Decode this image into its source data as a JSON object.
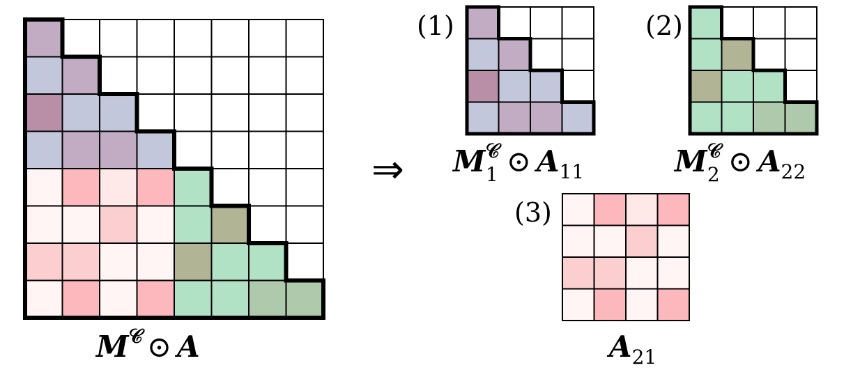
{
  "colors": {
    "0": "#ffffff",
    "b": "#c3c7dc",
    "p": "#c1acc3",
    "P": "#b98fa7",
    "r1": "#fff5f5",
    "r2": "#fee8e8",
    "r3": "#fbcfd0",
    "r4": "#fcb8bc",
    "g": "#b2e2c6",
    "G": "#aec9ab",
    "O": "#b1b495"
  },
  "main": {
    "caption_base": "M",
    "caption_sup": "𝒞",
    "caption_op": "⊙",
    "caption_rhs": "A",
    "grid": [
      [
        "p",
        "0",
        "0",
        "0",
        "0",
        "0",
        "0",
        "0"
      ],
      [
        "b",
        "p",
        "0",
        "0",
        "0",
        "0",
        "0",
        "0"
      ],
      [
        "P",
        "b",
        "b",
        "0",
        "0",
        "0",
        "0",
        "0"
      ],
      [
        "b",
        "p",
        "p",
        "b",
        "0",
        "0",
        "0",
        "0"
      ],
      [
        "r1",
        "r4",
        "r2",
        "r4",
        "g",
        "0",
        "0",
        "0"
      ],
      [
        "r1",
        "r1",
        "r3",
        "r1",
        "g",
        "O",
        "0",
        "0"
      ],
      [
        "r3",
        "r3",
        "r1",
        "r1",
        "O",
        "g",
        "g",
        "0"
      ],
      [
        "r1",
        "r4",
        "r1",
        "r4",
        "g",
        "g",
        "G",
        "G"
      ]
    ]
  },
  "arrow": "⇒",
  "sub1": {
    "label": "(1)",
    "caption_base": "M",
    "caption_sup": "𝒞",
    "caption_sub": "1",
    "caption_op": "⊙",
    "caption_rhs": "A",
    "caption_rhs_sub": "11",
    "grid": [
      [
        "p",
        "0",
        "0",
        "0"
      ],
      [
        "b",
        "p",
        "0",
        "0"
      ],
      [
        "P",
        "b",
        "b",
        "0"
      ],
      [
        "b",
        "p",
        "p",
        "b"
      ]
    ]
  },
  "sub2": {
    "label": "(2)",
    "caption_base": "M",
    "caption_sup": "𝒞",
    "caption_sub": "2",
    "caption_op": "⊙",
    "caption_rhs": "A",
    "caption_rhs_sub": "22",
    "grid": [
      [
        "g",
        "0",
        "0",
        "0"
      ],
      [
        "g",
        "O",
        "0",
        "0"
      ],
      [
        "O",
        "g",
        "g",
        "0"
      ],
      [
        "g",
        "g",
        "G",
        "G"
      ]
    ]
  },
  "sub3": {
    "label": "(3)",
    "caption_base": "A",
    "caption_sub": "21",
    "grid": [
      [
        "r1",
        "r4",
        "r2",
        "r4"
      ],
      [
        "r1",
        "r1",
        "r3",
        "r1"
      ],
      [
        "r3",
        "r3",
        "r1",
        "r1"
      ],
      [
        "r1",
        "r4",
        "r1",
        "r4"
      ]
    ]
  }
}
